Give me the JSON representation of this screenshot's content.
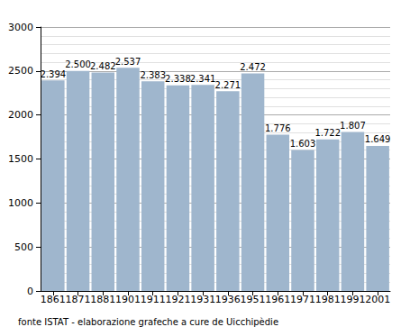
{
  "chart_data": {
    "type": "bar",
    "categories": [
      "1861",
      "1871",
      "1881",
      "1901",
      "1911",
      "1921",
      "1931",
      "1936",
      "1951",
      "1961",
      "1971",
      "1981",
      "1991",
      "2001"
    ],
    "values": [
      2394,
      2500,
      2482,
      2537,
      2383,
      2338,
      2341,
      2271,
      2472,
      1776,
      1603,
      1722,
      1807,
      1649
    ],
    "value_labels": [
      "2.394",
      "2.500",
      "2.482",
      "2.537",
      "2.383",
      "2.338",
      "2.341",
      "2.271",
      "2.472",
      "1.776",
      "1.603",
      "1.722",
      "1.807",
      "1.649"
    ],
    "color": "#9fb6cd",
    "ylim": [
      0,
      3000
    ],
    "yticks": [
      0,
      500,
      1000,
      1500,
      2000,
      2500,
      3000
    ],
    "grid": true,
    "data_labels": true,
    "annotations": [
      "fonte ISTAT - elaborazione grafeche a cure de Uicchipèdie"
    ]
  }
}
